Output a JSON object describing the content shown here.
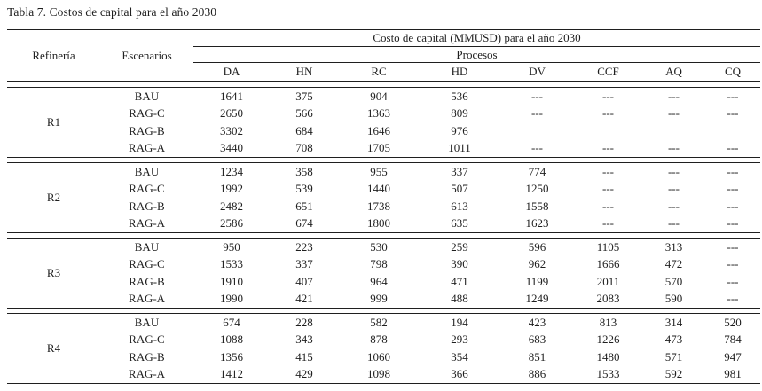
{
  "title": "Tabla 7. Costos de capital para el año 2030",
  "colors": {
    "text": "#1f1f1f",
    "rule": "#1f1f1f",
    "background": "#ffffff"
  },
  "table": {
    "cost_group_header": "Costo de capital (MMUSD) para el año 2030",
    "process_group_header": "Procesos",
    "refinery_header": "Refinería",
    "scenario_header": "Escenarios",
    "process_columns": [
      "DA",
      "HN",
      "RC",
      "HD",
      "DV",
      "CCF",
      "AQ",
      "CQ"
    ],
    "blocks": [
      {
        "refinery": "R1",
        "rows": [
          {
            "scenario": "BAU",
            "values": [
              "1641",
              "375",
              "904",
              "536",
              "---",
              "---",
              "---",
              "---"
            ]
          },
          {
            "scenario": "RAG-C",
            "values": [
              "2650",
              "566",
              "1363",
              "809",
              "---",
              "---",
              "---",
              "---"
            ]
          },
          {
            "scenario": "RAG-B",
            "values": [
              "3302",
              "684",
              "1646",
              "976",
              "",
              "",
              "",
              ""
            ]
          },
          {
            "scenario": "RAG-A",
            "values": [
              "3440",
              "708",
              "1705",
              "1011",
              "---",
              "---",
              "---",
              "---"
            ]
          }
        ]
      },
      {
        "refinery": "R2",
        "rows": [
          {
            "scenario": "BAU",
            "values": [
              "1234",
              "358",
              "955",
              "337",
              "774",
              "---",
              "---",
              "---"
            ]
          },
          {
            "scenario": "RAG-C",
            "values": [
              "1992",
              "539",
              "1440",
              "507",
              "1250",
              "---",
              "---",
              "---"
            ]
          },
          {
            "scenario": "RAG-B",
            "values": [
              "2482",
              "651",
              "1738",
              "613",
              "1558",
              "---",
              "---",
              "---"
            ]
          },
          {
            "scenario": "RAG-A",
            "values": [
              "2586",
              "674",
              "1800",
              "635",
              "1623",
              "---",
              "---",
              "---"
            ]
          }
        ]
      },
      {
        "refinery": "R3",
        "rows": [
          {
            "scenario": "BAU",
            "values": [
              "950",
              "223",
              "530",
              "259",
              "596",
              "1105",
              "313",
              "---"
            ]
          },
          {
            "scenario": "RAG-C",
            "values": [
              "1533",
              "337",
              "798",
              "390",
              "962",
              "1666",
              "472",
              "---"
            ]
          },
          {
            "scenario": "RAG-B",
            "values": [
              "1910",
              "407",
              "964",
              "471",
              "1199",
              "2011",
              "570",
              "---"
            ]
          },
          {
            "scenario": "RAG-A",
            "values": [
              "1990",
              "421",
              "999",
              "488",
              "1249",
              "2083",
              "590",
              "---"
            ]
          }
        ]
      },
      {
        "refinery": "R4",
        "rows": [
          {
            "scenario": "BAU",
            "values": [
              "674",
              "228",
              "582",
              "194",
              "423",
              "813",
              "314",
              "520"
            ]
          },
          {
            "scenario": "RAG-C",
            "values": [
              "1088",
              "343",
              "878",
              "293",
              "683",
              "1226",
              "473",
              "784"
            ]
          },
          {
            "scenario": "RAG-B",
            "values": [
              "1356",
              "415",
              "1060",
              "354",
              "851",
              "1480",
              "571",
              "947"
            ]
          },
          {
            "scenario": "RAG-A",
            "values": [
              "1412",
              "429",
              "1098",
              "366",
              "886",
              "1533",
              "592",
              "981"
            ]
          }
        ]
      }
    ]
  }
}
